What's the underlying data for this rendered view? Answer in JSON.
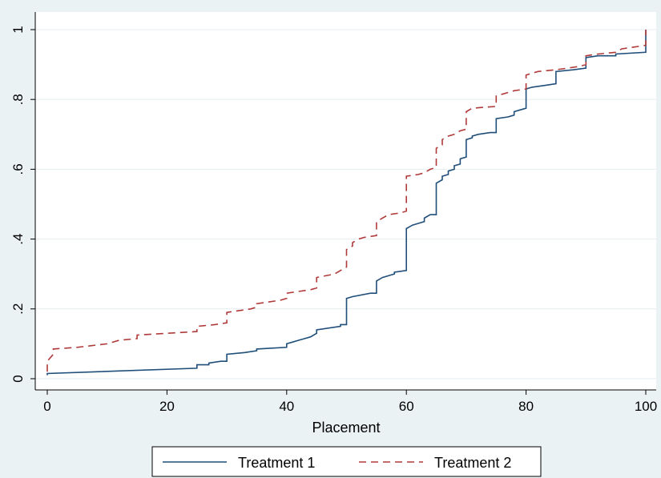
{
  "chart_data": {
    "type": "line",
    "title": "",
    "xlabel": "Placement",
    "ylabel": "",
    "xlim": [
      0,
      100
    ],
    "ylim": [
      0,
      1
    ],
    "x_ticks": [
      0,
      20,
      40,
      60,
      80,
      100
    ],
    "y_ticks": [
      0,
      0.2,
      0.4,
      0.6,
      0.8,
      1
    ],
    "x_tick_labels": [
      "0",
      "20",
      "40",
      "60",
      "80",
      "100"
    ],
    "y_tick_labels": [
      "0",
      ".2",
      ".4",
      ".6",
      ".8",
      "1"
    ],
    "grid": "horizontal",
    "legend_position": "bottom",
    "series": [
      {
        "name": "Treatment 1",
        "color": "#1f4e79",
        "dash": "solid",
        "points": [
          [
            0,
            0.01
          ],
          [
            0,
            0.015
          ],
          [
            25,
            0.03
          ],
          [
            25,
            0.04
          ],
          [
            27,
            0.04
          ],
          [
            27,
            0.045
          ],
          [
            29,
            0.05
          ],
          [
            30,
            0.05
          ],
          [
            30,
            0.07
          ],
          [
            33,
            0.075
          ],
          [
            35,
            0.08
          ],
          [
            35,
            0.085
          ],
          [
            40,
            0.09
          ],
          [
            40,
            0.1
          ],
          [
            41,
            0.105
          ],
          [
            42,
            0.11
          ],
          [
            43,
            0.115
          ],
          [
            44,
            0.12
          ],
          [
            45,
            0.13
          ],
          [
            45,
            0.14
          ],
          [
            49,
            0.15
          ],
          [
            49,
            0.155
          ],
          [
            50,
            0.155
          ],
          [
            50,
            0.23
          ],
          [
            51,
            0.235
          ],
          [
            54,
            0.245
          ],
          [
            55,
            0.245
          ],
          [
            55,
            0.28
          ],
          [
            56,
            0.29
          ],
          [
            57,
            0.295
          ],
          [
            58,
            0.3
          ],
          [
            58,
            0.305
          ],
          [
            60,
            0.31
          ],
          [
            60,
            0.43
          ],
          [
            61,
            0.44
          ],
          [
            62,
            0.445
          ],
          [
            63,
            0.45
          ],
          [
            63,
            0.46
          ],
          [
            64,
            0.47
          ],
          [
            65,
            0.47
          ],
          [
            65,
            0.56
          ],
          [
            66,
            0.57
          ],
          [
            66,
            0.58
          ],
          [
            67,
            0.585
          ],
          [
            67,
            0.595
          ],
          [
            68,
            0.6
          ],
          [
            68,
            0.61
          ],
          [
            69,
            0.615
          ],
          [
            69,
            0.63
          ],
          [
            70,
            0.635
          ],
          [
            70,
            0.685
          ],
          [
            71,
            0.69
          ],
          [
            71,
            0.695
          ],
          [
            72,
            0.7
          ],
          [
            74,
            0.705
          ],
          [
            75,
            0.705
          ],
          [
            75,
            0.745
          ],
          [
            77,
            0.75
          ],
          [
            78,
            0.755
          ],
          [
            78,
            0.765
          ],
          [
            79,
            0.77
          ],
          [
            80,
            0.775
          ],
          [
            80,
            0.83
          ],
          [
            81,
            0.835
          ],
          [
            83,
            0.84
          ],
          [
            85,
            0.845
          ],
          [
            85,
            0.88
          ],
          [
            88,
            0.885
          ],
          [
            90,
            0.89
          ],
          [
            90,
            0.92
          ],
          [
            92,
            0.925
          ],
          [
            95,
            0.925
          ],
          [
            95,
            0.93
          ],
          [
            100,
            0.935
          ],
          [
            100,
            1.0
          ]
        ]
      },
      {
        "name": "Treatment 2",
        "color": "#b03a3a",
        "dash": "dashed",
        "points": [
          [
            0,
            0.02
          ],
          [
            0,
            0.05
          ],
          [
            1,
            0.07
          ],
          [
            1,
            0.085
          ],
          [
            5,
            0.09
          ],
          [
            10,
            0.1
          ],
          [
            12,
            0.11
          ],
          [
            15,
            0.115
          ],
          [
            15,
            0.125
          ],
          [
            20,
            0.13
          ],
          [
            25,
            0.135
          ],
          [
            25,
            0.15
          ],
          [
            28,
            0.155
          ],
          [
            30,
            0.16
          ],
          [
            30,
            0.19
          ],
          [
            34,
            0.2
          ],
          [
            35,
            0.205
          ],
          [
            35,
            0.215
          ],
          [
            39,
            0.225
          ],
          [
            40,
            0.23
          ],
          [
            40,
            0.245
          ],
          [
            44,
            0.255
          ],
          [
            45,
            0.26
          ],
          [
            45,
            0.29
          ],
          [
            48,
            0.3
          ],
          [
            49,
            0.31
          ],
          [
            50,
            0.32
          ],
          [
            50,
            0.37
          ],
          [
            51,
            0.38
          ],
          [
            51,
            0.39
          ],
          [
            52,
            0.4
          ],
          [
            53,
            0.405
          ],
          [
            55,
            0.41
          ],
          [
            55,
            0.45
          ],
          [
            56,
            0.46
          ],
          [
            57,
            0.47
          ],
          [
            59,
            0.475
          ],
          [
            60,
            0.48
          ],
          [
            60,
            0.58
          ],
          [
            62,
            0.585
          ],
          [
            63,
            0.59
          ],
          [
            64,
            0.6
          ],
          [
            65,
            0.605
          ],
          [
            65,
            0.66
          ],
          [
            66,
            0.67
          ],
          [
            66,
            0.685
          ],
          [
            67,
            0.695
          ],
          [
            68,
            0.7
          ],
          [
            69,
            0.71
          ],
          [
            70,
            0.715
          ],
          [
            70,
            0.765
          ],
          [
            71,
            0.775
          ],
          [
            75,
            0.78
          ],
          [
            75,
            0.81
          ],
          [
            76,
            0.815
          ],
          [
            78,
            0.825
          ],
          [
            80,
            0.83
          ],
          [
            80,
            0.87
          ],
          [
            82,
            0.88
          ],
          [
            85,
            0.885
          ],
          [
            87,
            0.89
          ],
          [
            89,
            0.895
          ],
          [
            90,
            0.9
          ],
          [
            90,
            0.925
          ],
          [
            92,
            0.93
          ],
          [
            95,
            0.935
          ],
          [
            96,
            0.945
          ],
          [
            98,
            0.95
          ],
          [
            100,
            0.955
          ],
          [
            100,
            1.0
          ]
        ]
      }
    ]
  }
}
